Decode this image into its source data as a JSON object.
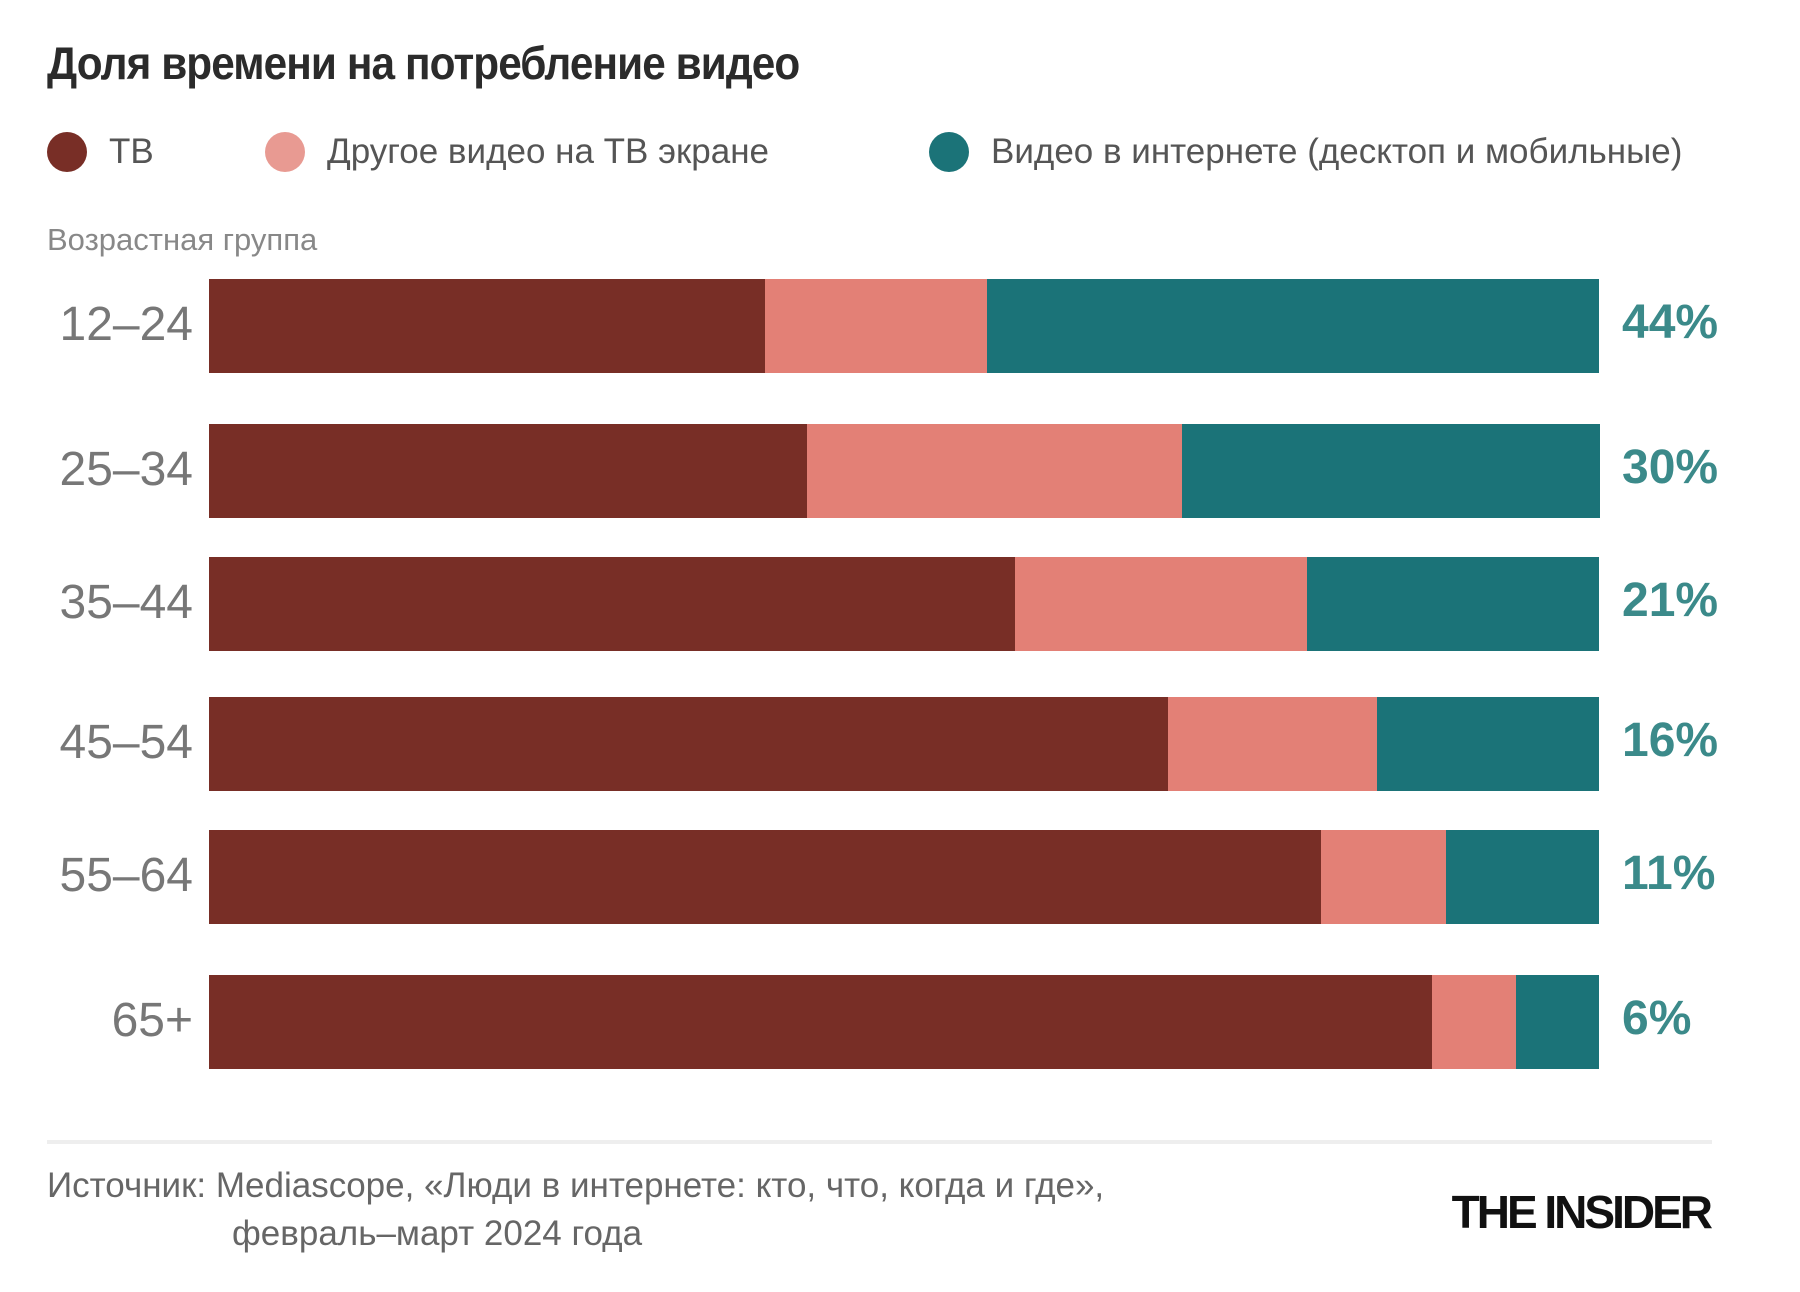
{
  "chart_data": {
    "type": "bar",
    "orientation": "horizontal",
    "stacked": true,
    "title": "Доля времени на потребление видео",
    "ylabel": "Возрастная группа",
    "categories": [
      "12–24",
      "25–34",
      "35–44",
      "45–54",
      "55–64",
      "65+"
    ],
    "series": [
      {
        "name": "ТВ",
        "color": "#782e26",
        "values": [
          40,
          43,
          58,
          69,
          80,
          88
        ]
      },
      {
        "name": "Другое видео на ТВ экране",
        "color": "#e38076",
        "values": [
          16,
          27,
          21,
          15,
          9,
          6
        ]
      },
      {
        "name": "Видео в интернете (десктоп и мобильные)",
        "color": "#1b7378",
        "values": [
          44,
          30,
          21,
          16,
          11,
          6
        ]
      }
    ],
    "data_labels": [
      "44%",
      "30%",
      "21%",
      "16%",
      "11%",
      "6%"
    ],
    "xlim": [
      0,
      100
    ],
    "grid": false,
    "legend_position": "top"
  },
  "legend_colors": [
    "#782e26",
    "#e89a92",
    "#1b7378"
  ],
  "source": {
    "line1": "Источник: Mediascope, «Люди в интернете: кто, что, когда и где»,",
    "line2": "февраль–март 2024 года"
  },
  "logo": "THE INSIDER"
}
